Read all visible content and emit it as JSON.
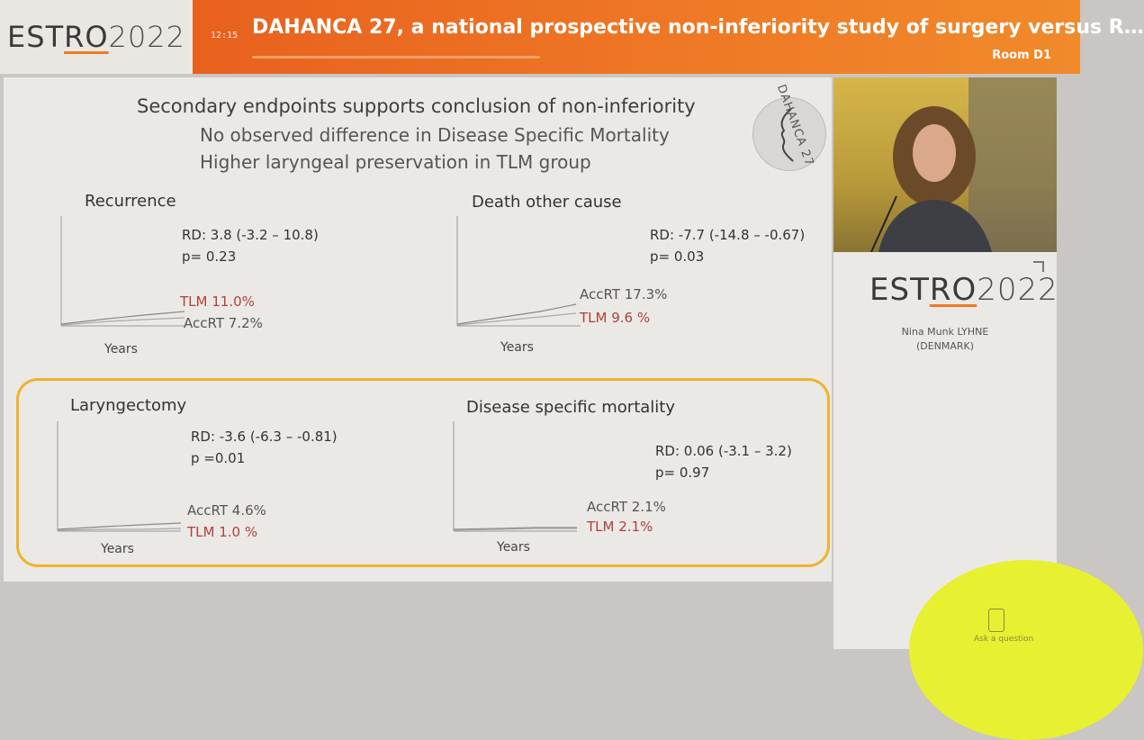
{
  "header": {
    "logo_main": "ESTRO",
    "logo_year": "2022",
    "time": "12:15",
    "title": "DAHANCA 27, a national prospective non-inferiority study of surgery versus R…",
    "room": "Room D1"
  },
  "slide": {
    "title": "Secondary endpoints supports conclusion of non-inferiority",
    "bullet1": "No observed difference in Disease Specific Mortality",
    "bullet2": "Higher laryngeal preservation in TLM group",
    "badge_text": "DAHANCA 27",
    "panels": [
      {
        "title": "Recurrence",
        "rd": "RD: 3.8  (-3.2 – 10.8)",
        "p": "p= 0.23",
        "line1": "TLM   11.0%",
        "line2": "AccRT  7.2%",
        "xlabel": "Years"
      },
      {
        "title": "Death other cause",
        "rd": "RD: -7.7  (-14.8 – -0.67)",
        "p": "p= 0.03",
        "line1": "AccRT  17.3%",
        "line2": "TLM     9.6 %",
        "xlabel": "Years"
      },
      {
        "title": "Laryngectomy",
        "rd": "RD: -3.6  (-6.3 – -0.81)",
        "p": "p =0.01",
        "line1": "AccRT  4.6%",
        "line2": "TLM    1.0 %",
        "xlabel": "Years"
      },
      {
        "title": "Disease specific mortality",
        "rd": "RD: 0.06 (-3.1 – 3.2)",
        "p": "p= 0.97",
        "line1": "AccRT  2.1%",
        "line2": "TLM     2.1%",
        "xlabel": "Years"
      }
    ]
  },
  "speaker": {
    "logo_main": "ESTRO",
    "logo_year": "2022",
    "name": "Nina Munk LYHNE",
    "country": "(DENMARK)"
  },
  "ask": {
    "label": "Ask a question"
  },
  "colors": {
    "orange": "#ef7a26",
    "yellow_box": "#efb330",
    "tlm_red": "#b0413a",
    "accent_yellow": "#e8f032"
  }
}
